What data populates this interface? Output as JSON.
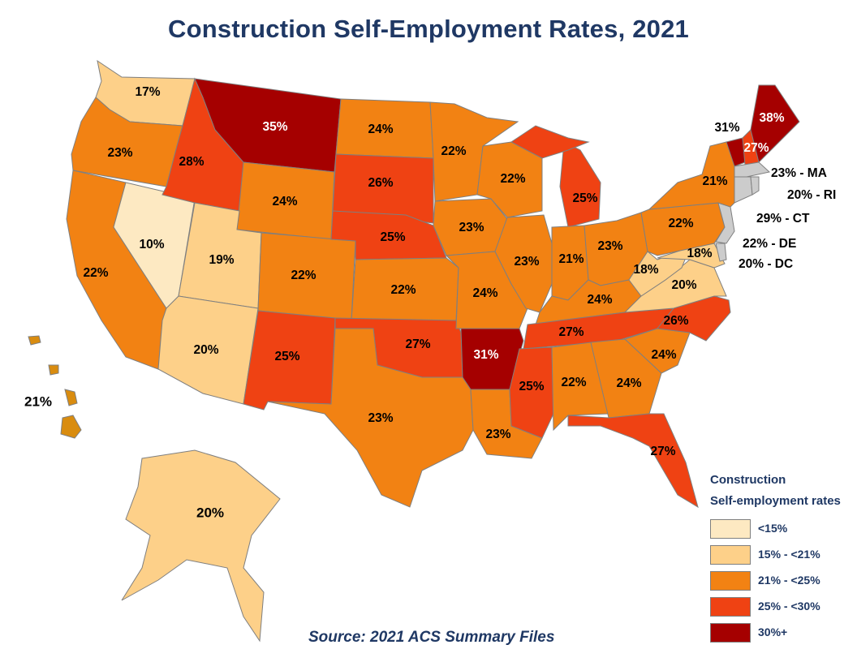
{
  "title": "Construction Self-Employment Rates, 2021",
  "source": "Source: 2021 ACS Summary Files",
  "legend": {
    "title_line1": "Construction",
    "title_line2": "Self-employment rates",
    "bins": [
      {
        "label": "<15%",
        "color": "#fde9c2"
      },
      {
        "label": "15% - <21%",
        "color": "#fdd089"
      },
      {
        "label": "21% - <25%",
        "color": "#f28213"
      },
      {
        "label": "25% - <30%",
        "color": "#ef4213"
      },
      {
        "label": "30%+",
        "color": "#a50000"
      }
    ]
  },
  "states": {
    "WA": "17%",
    "OR": "23%",
    "CA": "22%",
    "NV": "10%",
    "ID": "28%",
    "MT": "35%",
    "WY": "24%",
    "UT": "19%",
    "AZ": "20%",
    "CO": "22%",
    "NM": "25%",
    "ND": "24%",
    "SD": "26%",
    "NE": "25%",
    "KS": "22%",
    "OK": "27%",
    "TX": "23%",
    "MN": "22%",
    "IA": "23%",
    "MO": "24%",
    "AR": "31%",
    "LA": "23%",
    "WI": "22%",
    "IL": "23%",
    "MI": "25%",
    "IN": "21%",
    "OH": "23%",
    "KY": "24%",
    "TN": "27%",
    "MS": "25%",
    "AL": "22%",
    "GA": "24%",
    "FL": "27%",
    "SC": "24%",
    "NC": "26%",
    "VA": "20%",
    "WV": "18%",
    "MD": "18%",
    "PA": "22%",
    "NY": "21%",
    "VT": "31%",
    "NH": "27%",
    "ME": "38%",
    "AK": "20%",
    "HI": "21%"
  },
  "callouts": {
    "MA": "23% - MA",
    "RI": "20% - RI",
    "CT": "29% - CT",
    "DE": "22% - DE",
    "DC": "20% - DC"
  }
}
